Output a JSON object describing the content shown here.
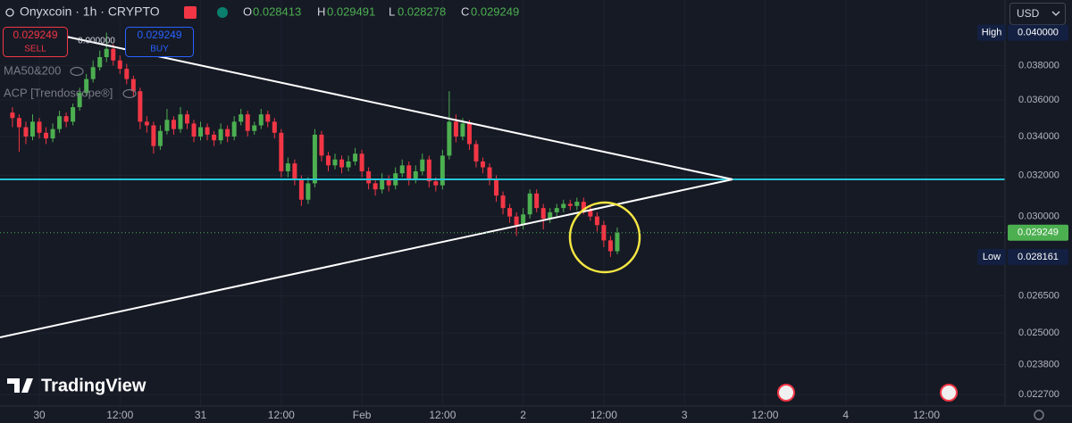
{
  "header": {
    "symbol": "Onyxcoin · 1h · CRYPTO",
    "o_label": "O",
    "o_value": "0.028413",
    "h_label": "H",
    "h_value": "0.029491",
    "l_label": "L",
    "l_value": "0.028278",
    "c_label": "C",
    "c_value": "0.029249",
    "sell_price": "0.029249",
    "sell": "SELL",
    "spread": "0.000000",
    "buy_price": "0.029249",
    "buy": "BUY",
    "indicator_1": "MA50&200",
    "indicator_2": "ACP [Trendoscope®]",
    "currency": "USD",
    "brand": "TradingView"
  },
  "chart_data": {
    "type": "candlestick",
    "log_scale": true,
    "grid": true,
    "up_color": "#4caf50",
    "down_color": "#f23645",
    "xlim": [
      -5.85,
      143.7
    ],
    "ylim": [
      0.0223,
      0.0421
    ],
    "xticks": [
      {
        "value": 0,
        "label": "30"
      },
      {
        "value": 12,
        "label": "12:00"
      },
      {
        "value": 24,
        "label": "31"
      },
      {
        "value": 36,
        "label": "12:00"
      },
      {
        "value": 48,
        "label": "Feb"
      },
      {
        "value": 60,
        "label": "12:00"
      },
      {
        "value": 72,
        "label": "2"
      },
      {
        "value": 84,
        "label": "12:00"
      },
      {
        "value": 96,
        "label": "3"
      },
      {
        "value": 108,
        "label": "12:00"
      },
      {
        "value": 120,
        "label": "4"
      },
      {
        "value": 132,
        "label": "12:00"
      }
    ],
    "yticks": [
      {
        "value": 0.038,
        "label": "0.038000"
      },
      {
        "value": 0.036,
        "label": "0.036000"
      },
      {
        "value": 0.034,
        "label": "0.034000"
      },
      {
        "value": 0.032,
        "label": "0.032000"
      },
      {
        "value": 0.03,
        "label": "0.030000"
      },
      {
        "value": 0.0265,
        "label": "0.026500"
      },
      {
        "value": 0.025,
        "label": "0.025000"
      },
      {
        "value": 0.0238,
        "label": "0.023800"
      },
      {
        "value": 0.0227,
        "label": "0.022700"
      }
    ],
    "price_labels": [
      {
        "name": "High",
        "value": 0.04,
        "label": "0.040000",
        "color": "#132042"
      },
      {
        "value": 0.029249,
        "label": "0.029249",
        "color": "#4caf50"
      },
      {
        "name": "Low",
        "value": 0.028161,
        "label": "0.028161",
        "color": "#132042"
      }
    ],
    "x": [
      -4,
      -3,
      -2,
      -1,
      0,
      1,
      2,
      3,
      4,
      5,
      6,
      7,
      8,
      9,
      10,
      11,
      12,
      13,
      14,
      15,
      16,
      17,
      18,
      19,
      20,
      21,
      22,
      23,
      24,
      25,
      26,
      27,
      28,
      29,
      30,
      31,
      32,
      33,
      34,
      35,
      36,
      37,
      38,
      39,
      40,
      41,
      42,
      43,
      44,
      45,
      46,
      47,
      48,
      49,
      50,
      51,
      52,
      53,
      54,
      55,
      56,
      57,
      58,
      59,
      60,
      61,
      62,
      63,
      64,
      65,
      66,
      67,
      68,
      69,
      70,
      71,
      72,
      73,
      74,
      75,
      76,
      77,
      78,
      79,
      80,
      81,
      82,
      83,
      84,
      85,
      86
    ],
    "open": [
      0.0353,
      0.035,
      0.0345,
      0.034,
      0.0348,
      0.0342,
      0.0339,
      0.0344,
      0.0351,
      0.0348,
      0.0356,
      0.0364,
      0.0372,
      0.0379,
      0.0385,
      0.039,
      0.0383,
      0.0378,
      0.0372,
      0.0365,
      0.0348,
      0.0346,
      0.0335,
      0.0343,
      0.0349,
      0.0344,
      0.0352,
      0.0347,
      0.034,
      0.0345,
      0.0341,
      0.0338,
      0.0344,
      0.034,
      0.0348,
      0.0352,
      0.0343,
      0.0346,
      0.0352,
      0.0348,
      0.0342,
      0.0322,
      0.0326,
      0.0318,
      0.0308,
      0.0316,
      0.0341,
      0.033,
      0.0325,
      0.0328,
      0.0324,
      0.0327,
      0.0331,
      0.0322,
      0.0316,
      0.0313,
      0.0318,
      0.0315,
      0.0321,
      0.0325,
      0.0318,
      0.0322,
      0.0328,
      0.0317,
      0.0315,
      0.033,
      0.0348,
      0.034,
      0.0347,
      0.0336,
      0.0327,
      0.0324,
      0.0318,
      0.031,
      0.0304,
      0.03,
      0.0296,
      0.0301,
      0.0311,
      0.0304,
      0.0299,
      0.0302,
      0.0304,
      0.0306,
      0.0305,
      0.0307,
      0.0303,
      0.03,
      0.0296,
      0.0289,
      0.028413
    ],
    "high": [
      0.0356,
      0.0352,
      0.0348,
      0.0352,
      0.035,
      0.0345,
      0.0347,
      0.0354,
      0.0353,
      0.0358,
      0.0367,
      0.0375,
      0.0383,
      0.0389,
      0.04,
      0.0393,
      0.0386,
      0.0381,
      0.0374,
      0.0367,
      0.0351,
      0.0348,
      0.0346,
      0.0355,
      0.0351,
      0.0356,
      0.0354,
      0.0349,
      0.0348,
      0.0347,
      0.0343,
      0.0347,
      0.0346,
      0.0351,
      0.0355,
      0.0354,
      0.0348,
      0.0355,
      0.0354,
      0.035,
      0.0344,
      0.0329,
      0.0328,
      0.032,
      0.0319,
      0.0344,
      0.0343,
      0.0332,
      0.0331,
      0.033,
      0.033,
      0.0334,
      0.0333,
      0.0324,
      0.0318,
      0.0321,
      0.032,
      0.0324,
      0.0328,
      0.0327,
      0.0325,
      0.0331,
      0.033,
      0.0319,
      0.0333,
      0.0365,
      0.0352,
      0.035,
      0.0349,
      0.0338,
      0.0329,
      0.0326,
      0.032,
      0.0312,
      0.0306,
      0.0302,
      0.0304,
      0.0313,
      0.0313,
      0.0306,
      0.0304,
      0.0306,
      0.0308,
      0.0308,
      0.0309,
      0.0309,
      0.0305,
      0.0302,
      0.0298,
      0.0291,
      0.029491
    ],
    "low": [
      0.0345,
      0.0332,
      0.0336,
      0.0338,
      0.0339,
      0.0336,
      0.0337,
      0.0342,
      0.0345,
      0.0346,
      0.0354,
      0.0362,
      0.037,
      0.0377,
      0.0382,
      0.038,
      0.0375,
      0.0369,
      0.0362,
      0.0344,
      0.0342,
      0.0331,
      0.0333,
      0.0341,
      0.0341,
      0.0342,
      0.0344,
      0.0337,
      0.0338,
      0.0338,
      0.0335,
      0.0336,
      0.0337,
      0.0338,
      0.0346,
      0.034,
      0.0341,
      0.0344,
      0.0345,
      0.0339,
      0.0319,
      0.0319,
      0.0315,
      0.0305,
      0.0306,
      0.0314,
      0.0327,
      0.0322,
      0.0323,
      0.0321,
      0.0322,
      0.0325,
      0.0319,
      0.0313,
      0.031,
      0.0311,
      0.0312,
      0.0313,
      0.0319,
      0.0315,
      0.0316,
      0.032,
      0.0314,
      0.0312,
      0.0313,
      0.0328,
      0.0337,
      0.0338,
      0.0333,
      0.0324,
      0.0321,
      0.0315,
      0.0307,
      0.0301,
      0.0297,
      0.0291,
      0.0294,
      0.0299,
      0.0302,
      0.0294,
      0.0297,
      0.03,
      0.0302,
      0.0303,
      0.0303,
      0.0301,
      0.0298,
      0.0293,
      0.0286,
      0.028161,
      0.028278
    ],
    "close": [
      0.035,
      0.0345,
      0.034,
      0.0348,
      0.0342,
      0.0339,
      0.0344,
      0.0351,
      0.0348,
      0.0356,
      0.0364,
      0.0372,
      0.0379,
      0.0385,
      0.039,
      0.0383,
      0.0378,
      0.0372,
      0.0365,
      0.0348,
      0.0346,
      0.0335,
      0.0343,
      0.0349,
      0.0344,
      0.0352,
      0.0347,
      0.034,
      0.0345,
      0.0341,
      0.0338,
      0.0344,
      0.034,
      0.0348,
      0.0352,
      0.0343,
      0.0346,
      0.0352,
      0.0348,
      0.0342,
      0.0322,
      0.0326,
      0.0318,
      0.0308,
      0.0316,
      0.0341,
      0.033,
      0.0325,
      0.0328,
      0.0324,
      0.0327,
      0.0331,
      0.0322,
      0.0316,
      0.0313,
      0.0318,
      0.0315,
      0.0321,
      0.0325,
      0.0318,
      0.0322,
      0.0328,
      0.0317,
      0.0315,
      0.033,
      0.0348,
      0.034,
      0.0347,
      0.0336,
      0.0327,
      0.0324,
      0.0318,
      0.031,
      0.0304,
      0.03,
      0.0296,
      0.0301,
      0.0311,
      0.0304,
      0.0299,
      0.0302,
      0.0304,
      0.0306,
      0.0305,
      0.0307,
      0.0303,
      0.03,
      0.0296,
      0.0289,
      0.028413,
      0.029249
    ]
  }
}
